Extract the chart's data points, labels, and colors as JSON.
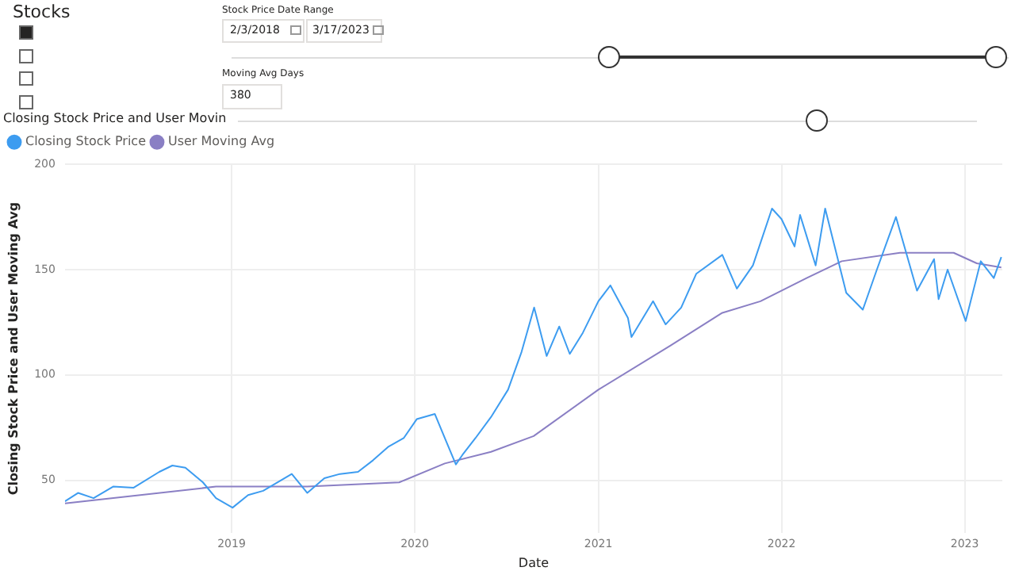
{
  "chart_data": {
    "type": "line",
    "title": "Closing Stock Price and User Movin",
    "xlabel": "Date",
    "ylabel": "Closing Stock Price and User Moving Avg",
    "annotations": [
      "Stocks",
      "Stock Price Date Range",
      "2/3/2018",
      "3/17/2023",
      "Moving Avg Days",
      "380"
    ],
    "series": [
      {
        "name": "Closing Stock Price",
        "color": "#3d9cf0",
        "x": [
          "2018-02-03",
          "2018-03-01",
          "2018-04-01",
          "2018-05-10",
          "2018-06-20",
          "2018-08-10",
          "2018-09-05",
          "2018-10-01",
          "2018-11-05",
          "2018-12-01",
          "2019-01-03",
          "2019-02-03",
          "2019-03-05",
          "2019-05-01",
          "2019-06-01",
          "2019-07-05",
          "2019-08-05",
          "2019-09-10",
          "2019-10-10",
          "2019-11-10",
          "2019-12-10",
          "2020-01-05",
          "2020-02-10",
          "2020-03-01",
          "2020-03-23",
          "2020-04-05",
          "2020-05-01",
          "2020-06-01",
          "2020-07-05",
          "2020-08-01",
          "2020-08-26",
          "2020-09-20",
          "2020-10-15",
          "2020-11-05",
          "2020-12-01",
          "2021-01-01",
          "2021-01-25",
          "2021-03-01",
          "2021-03-08",
          "2021-04-20",
          "2021-05-15",
          "2021-06-15",
          "2021-07-15",
          "2021-09-05",
          "2021-10-04",
          "2021-11-05",
          "2021-12-13",
          "2022-01-01",
          "2022-01-27",
          "2022-02-07",
          "2022-03-10",
          "2022-03-29",
          "2022-05-10",
          "2022-06-12",
          "2022-07-10",
          "2022-08-17",
          "2022-09-28",
          "2022-11-01",
          "2022-11-10",
          "2022-11-28",
          "2023-01-03",
          "2023-02-02",
          "2023-02-28",
          "2023-03-15"
        ],
        "values": [
          40,
          44,
          41.5,
          47,
          46.5,
          54,
          57,
          56,
          49,
          41.5,
          37,
          43,
          45,
          53,
          44,
          51,
          53,
          54,
          59.5,
          66,
          70,
          79,
          81.5,
          70,
          57.5,
          62,
          70,
          80,
          93,
          111,
          132,
          109,
          123,
          110,
          120,
          135,
          142.5,
          127,
          118,
          135,
          124,
          132,
          148,
          157,
          141,
          152,
          179,
          174,
          161,
          176,
          152,
          179,
          139,
          131,
          150,
          175,
          140,
          155,
          136,
          150,
          125.6,
          154,
          146,
          156
        ]
      },
      {
        "name": "User Moving Avg",
        "color": "#8a7fc4",
        "x": [
          "2018-02-03",
          "2018-12-01",
          "2019-06-01",
          "2019-12-01",
          "2020-03-01",
          "2020-06-01",
          "2020-08-25",
          "2021-01-01",
          "2021-05-25",
          "2021-09-05",
          "2021-11-20",
          "2022-02-20",
          "2022-05-01",
          "2022-08-25",
          "2022-12-10",
          "2023-01-25",
          "2023-03-15"
        ],
        "values": [
          39,
          47,
          47,
          49,
          58,
          63.5,
          71,
          93,
          114,
          129.5,
          135,
          146,
          154,
          158,
          158,
          153,
          151
        ]
      }
    ],
    "xlim": [
      "2018-02-03",
      "2023-03-17"
    ],
    "xticks": [
      {
        "value": "2019-01-01",
        "label": "2019"
      },
      {
        "value": "2020-01-01",
        "label": "2020"
      },
      {
        "value": "2021-01-01",
        "label": "2021"
      },
      {
        "value": "2022-01-01",
        "label": "2022"
      },
      {
        "value": "2023-01-01",
        "label": "2023"
      }
    ],
    "ylim": [
      25,
      200
    ],
    "yticks": [
      50,
      100,
      150,
      200
    ],
    "grid": true,
    "legend": "top left",
    "marker": "none",
    "line_style": "solid"
  }
}
